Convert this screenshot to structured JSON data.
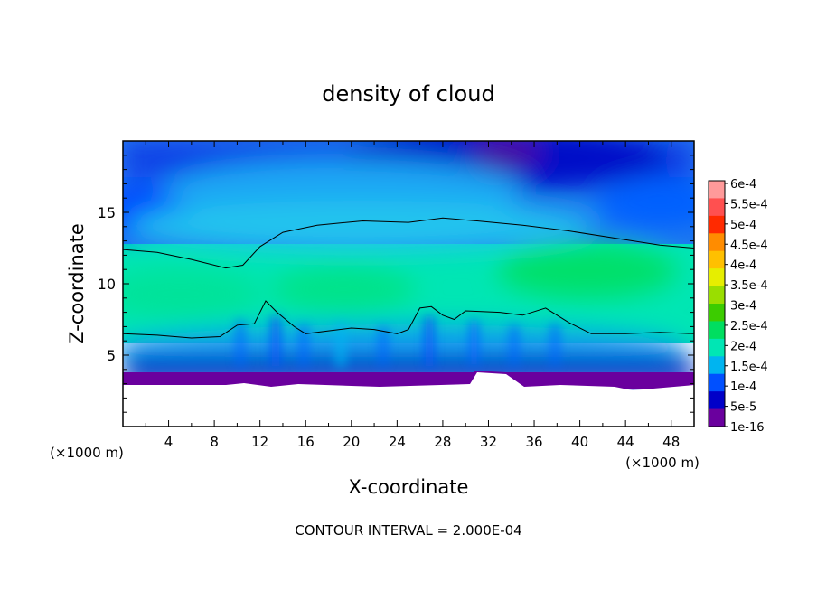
{
  "chart_data": {
    "type": "heatmap",
    "title": "density of cloud",
    "xlabel": "X-coordinate",
    "ylabel": "Z-coordinate",
    "x_unit": "(×1000 m)",
    "footer": "CONTOUR INTERVAL = 2.000E-04",
    "x_range": [
      0,
      50
    ],
    "y_range": [
      0,
      20
    ],
    "x_ticks": [
      "4",
      "8",
      "12",
      "16",
      "20",
      "24",
      "28",
      "32",
      "36",
      "40",
      "44",
      "48"
    ],
    "y_ticks": [
      "5",
      "10",
      "15"
    ],
    "colorbar": {
      "labels": [
        "6e-4",
        "5.5e-4",
        "5e-4",
        "4.5e-4",
        "4e-4",
        "3.5e-4",
        "3e-4",
        "2.5e-4",
        "2e-4",
        "1.5e-4",
        "1e-4",
        "5e-5",
        "1e-16"
      ],
      "colors": [
        "#ff9a9a",
        "#ff5050",
        "#ff2a00",
        "#ff8c00",
        "#ffc000",
        "#e6ee00",
        "#9ade00",
        "#3ccc00",
        "#00de60",
        "#00e6b4",
        "#00b4f0",
        "#0050ff",
        "#0000c8",
        "#6a009e"
      ]
    },
    "contour_value": "2.000E-04",
    "contour_lines": [
      {
        "name": "upper",
        "points": [
          [
            0,
            12.4
          ],
          [
            3,
            12.2
          ],
          [
            6,
            11.7
          ],
          [
            9,
            11.1
          ],
          [
            10.5,
            11.3
          ],
          [
            12,
            12.6
          ],
          [
            14,
            13.6
          ],
          [
            17,
            14.1
          ],
          [
            21,
            14.4
          ],
          [
            25,
            14.3
          ],
          [
            28,
            14.6
          ],
          [
            31,
            14.4
          ],
          [
            35,
            14.1
          ],
          [
            39,
            13.7
          ],
          [
            43,
            13.2
          ],
          [
            47,
            12.7
          ],
          [
            50,
            12.5
          ]
        ]
      },
      {
        "name": "lower",
        "points": [
          [
            0,
            6.5
          ],
          [
            3,
            6.4
          ],
          [
            6,
            6.2
          ],
          [
            8.5,
            6.3
          ],
          [
            10,
            7.1
          ],
          [
            11.5,
            7.2
          ],
          [
            12.5,
            8.8
          ],
          [
            13.5,
            8.0
          ],
          [
            15,
            7.0
          ],
          [
            16,
            6.5
          ],
          [
            18,
            6.7
          ],
          [
            20,
            6.9
          ],
          [
            22,
            6.8
          ],
          [
            24,
            6.5
          ],
          [
            25,
            6.8
          ],
          [
            26,
            8.3
          ],
          [
            27,
            8.4
          ],
          [
            28,
            7.8
          ],
          [
            29,
            7.5
          ],
          [
            30,
            8.1
          ],
          [
            33,
            8.0
          ],
          [
            35,
            7.8
          ],
          [
            37,
            8.3
          ],
          [
            39,
            7.3
          ],
          [
            41,
            6.5
          ],
          [
            44,
            6.5
          ],
          [
            47,
            6.6
          ],
          [
            50,
            6.5
          ]
        ]
      }
    ],
    "cloud_base_z": 3.0
  }
}
